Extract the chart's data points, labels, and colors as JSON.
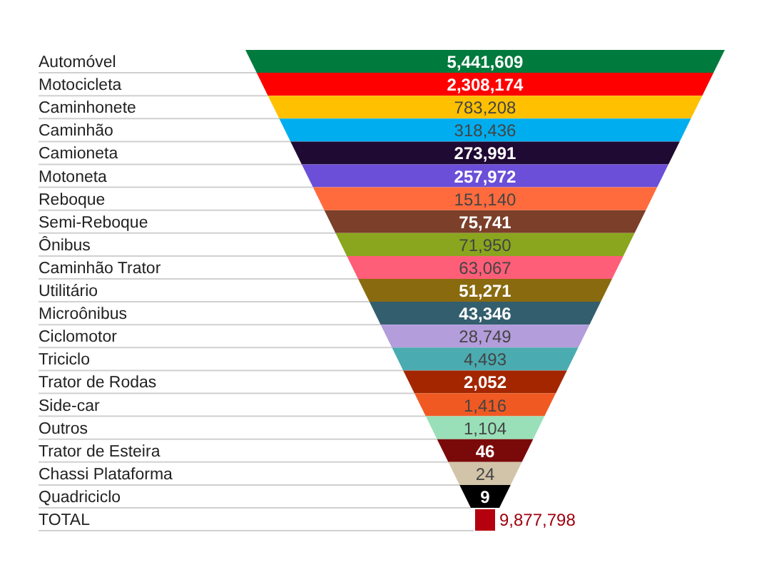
{
  "chart_data": {
    "type": "other",
    "categories": [
      "Automóvel",
      "Motocicleta",
      "Caminhonete",
      "Caminhão",
      "Camioneta",
      "Motoneta",
      "Reboque",
      "Semi-Reboque",
      "Ônibus",
      "Caminhão Trator",
      "Utilitário",
      "Microônibus",
      "Ciclomotor",
      "Triciclo",
      "Trator de Rodas",
      "Side-car",
      "Outros",
      "Trator de Esteira",
      "Chassi Plataforma",
      "Quadriciclo"
    ],
    "colors": [
      "#007a3d",
      "#ff0000",
      "#ffc000",
      "#00aeef",
      "#1f0a33",
      "#6b4fd8",
      "#ff6b3d",
      "#7b3f2a",
      "#8aa61e",
      "#ff5e78",
      "#8a6a0f",
      "#335e6e",
      "#b39ddb",
      "#4aacb0",
      "#a32600",
      "#f05a22",
      "#99e0b8",
      "#7a0a0a",
      "#d2c4a8",
      "#000000"
    ],
    "values": [
      5441609,
      2308174,
      783208,
      318436,
      273991,
      257972,
      151140,
      75741,
      71950,
      63067,
      51271,
      43346,
      28749,
      4493,
      2052,
      1416,
      1104,
      46,
      24,
      9
    ],
    "data_labels": true,
    "value_labels": [
      "5,441,609",
      "2,308,174",
      "783,208",
      "318,436",
      "273,991",
      "257,972",
      "151,140",
      "75,741",
      "71,950",
      "63,067",
      "51,271",
      "43,346",
      "28,749",
      "4,493",
      "2,052",
      "1,416",
      "1,104",
      "46",
      "24",
      "9"
    ],
    "annotations": [
      "TOTAL"
    ],
    "totals": [
      "9,877,798"
    ]
  }
}
